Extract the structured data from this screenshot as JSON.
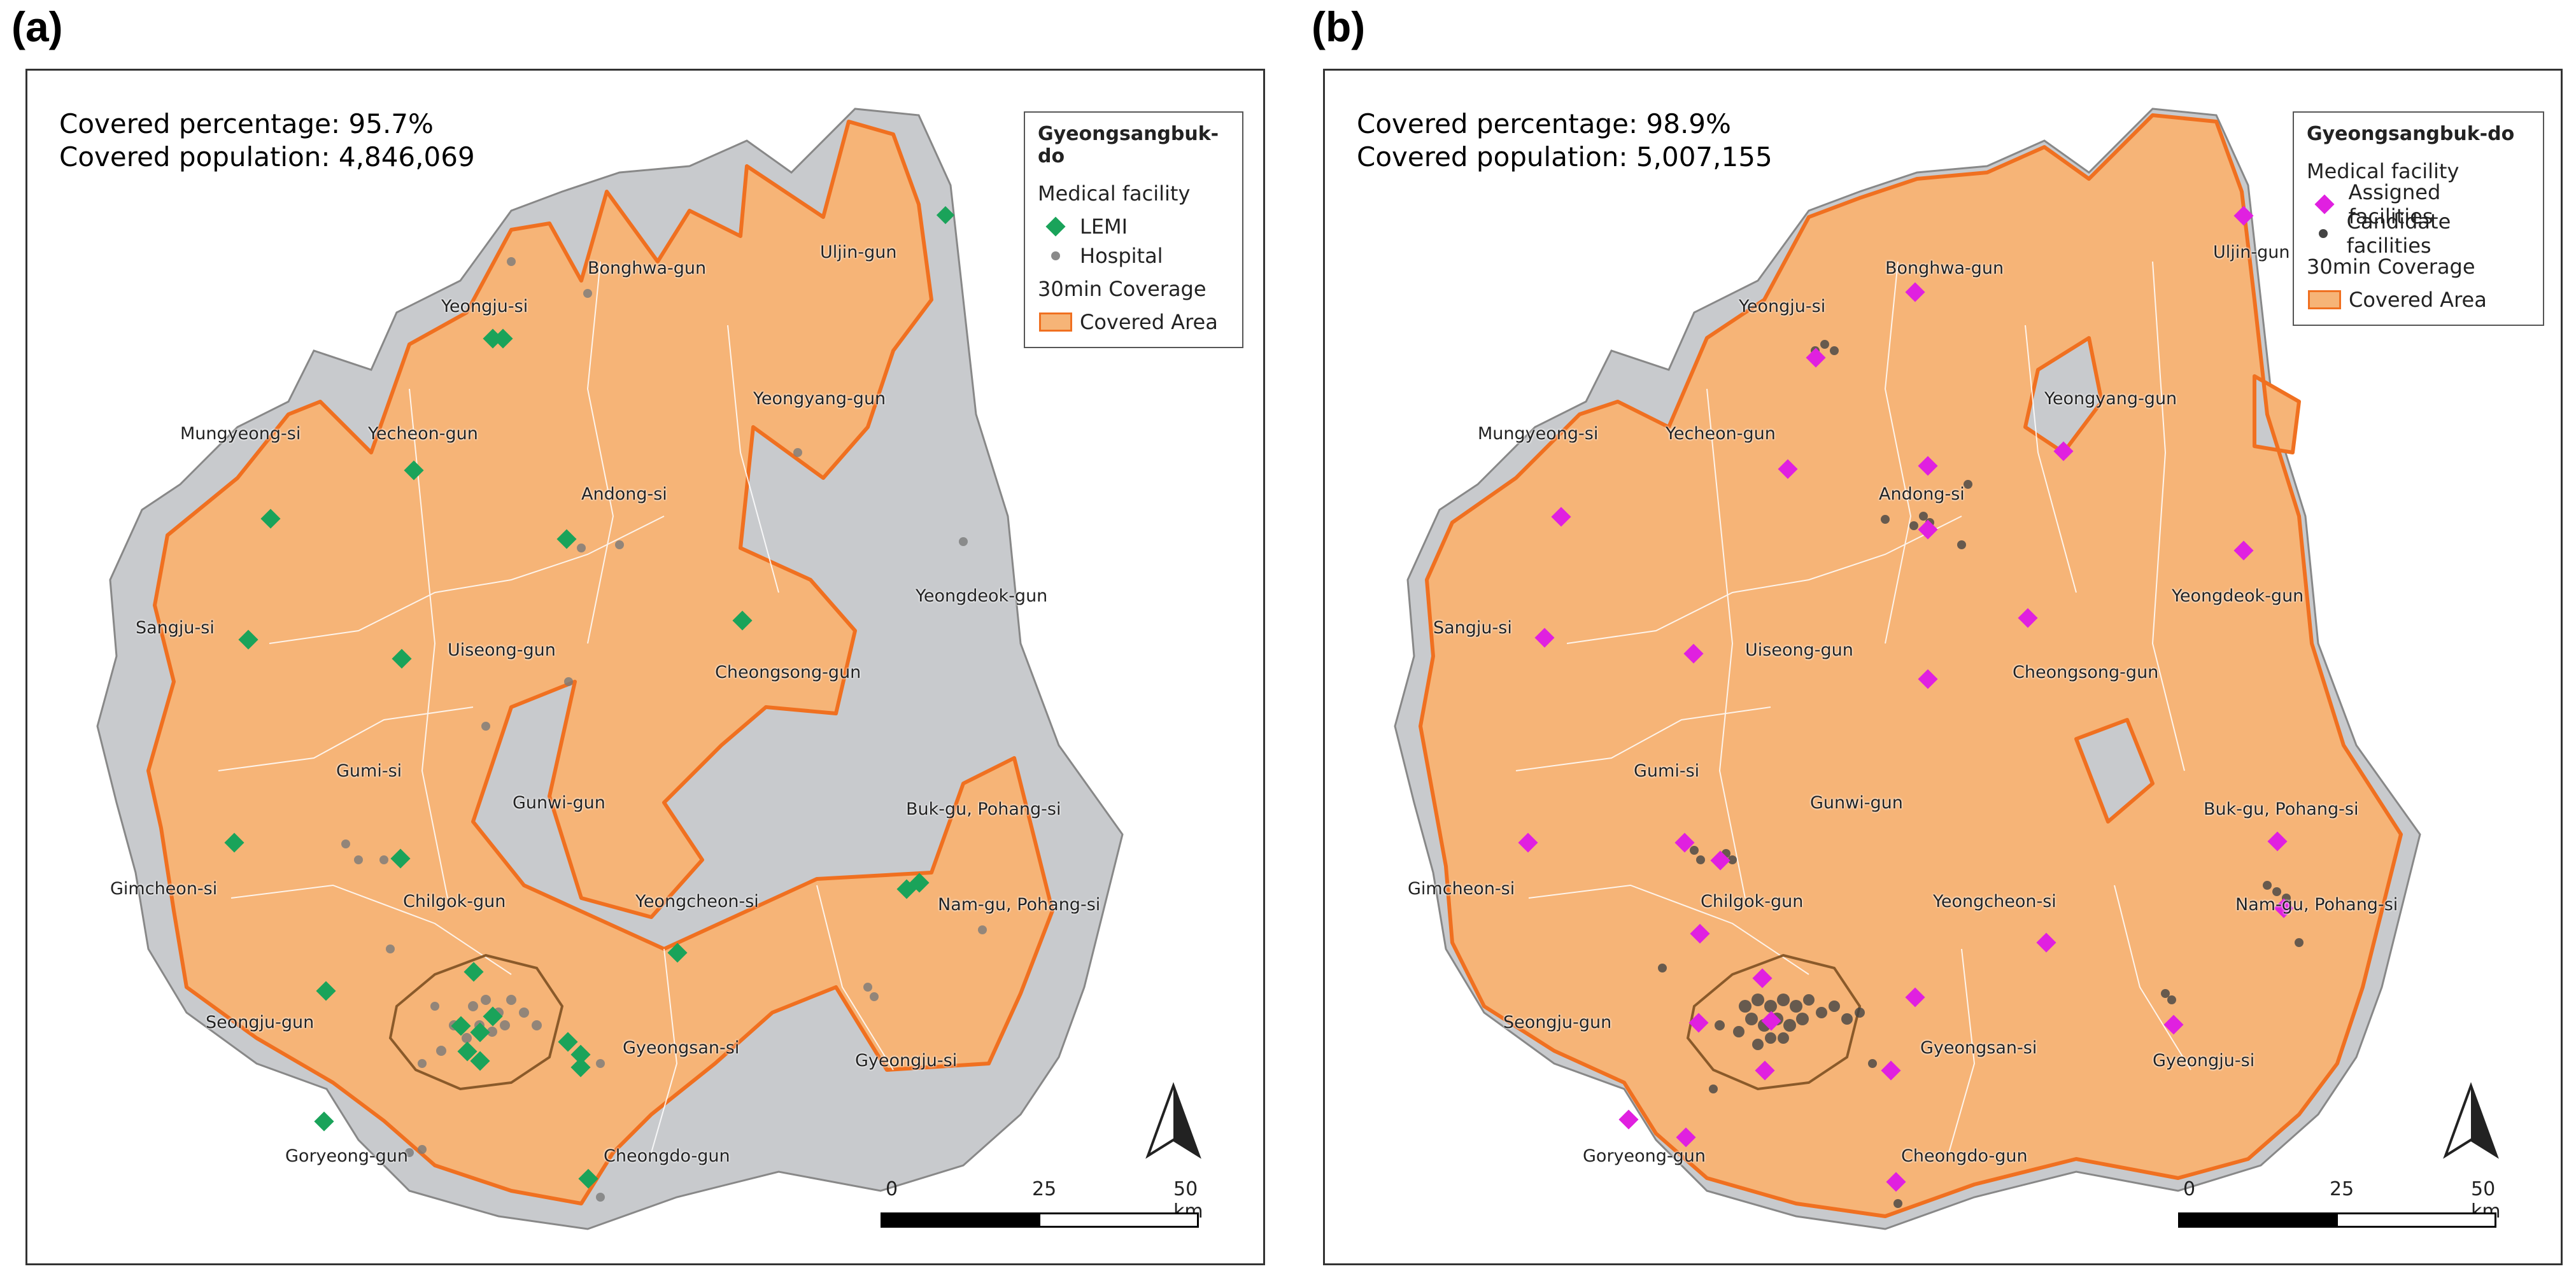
{
  "panels": [
    {
      "id": "a",
      "label": "(a)",
      "covered_percentage": "Covered percentage: 95.7%",
      "covered_population": "Covered population: 4,846,069",
      "legend": {
        "title": "Gyeongsangbuk-do",
        "facility_heading": "Medical facility",
        "item1": "LEMI",
        "item2": "Hospital",
        "coverage_heading": "30min Coverage",
        "item3": "Covered Area",
        "item1_color": "#1aa35a",
        "item2_color": "#8a8a8a"
      },
      "places": [
        "Uljin-gun",
        "Bonghwa-gun",
        "Yeongju-si",
        "Yeongyang-gun",
        "Mungyeong-si",
        "Yecheon-gun",
        "Andong-si",
        "Yeongdeok-gun",
        "Sangju-si",
        "Uiseong-gun",
        "Cheongsong-gun",
        "Gumi-si",
        "Gunwi-gun",
        "Buk-gu, Pohang-si",
        "Gimcheon-si",
        "Chilgok-gun",
        "Yeongcheon-si",
        "Nam-gu, Pohang-si",
        "Seongju-gun",
        "Gyeongsan-si",
        "Gyeongju-si",
        "Goryeong-gun",
        "Cheongdo-gun"
      ],
      "scale": {
        "t0": "0",
        "t1": "25",
        "t2": "50 km"
      }
    },
    {
      "id": "b",
      "label": "(b)",
      "covered_percentage": "Covered percentage: 98.9%",
      "covered_population": "Covered population: 5,007,155",
      "legend": {
        "title": "Gyeongsangbuk-do",
        "facility_heading": "Medical facility",
        "item1": "Assigned facilities",
        "item2": "Candidate facilities",
        "coverage_heading": "30min Coverage",
        "item3": "Covered Area",
        "item1_color": "#e020e0",
        "item2_color": "#444444"
      },
      "places": [
        "Uljin-gun",
        "Bonghwa-gun",
        "Yeongju-si",
        "Yeongyang-gun",
        "Mungyeong-si",
        "Yecheon-gun",
        "Andong-si",
        "Yeongdeok-gun",
        "Sangju-si",
        "Uiseong-gun",
        "Cheongsong-gun",
        "Gumi-si",
        "Gunwi-gun",
        "Buk-gu, Pohang-si",
        "Gimcheon-si",
        "Chilgok-gun",
        "Yeongcheon-si",
        "Nam-gu, Pohang-si",
        "Seongju-gun",
        "Gyeongsan-si",
        "Gyeongju-si",
        "Goryeong-gun",
        "Cheongdo-gun"
      ],
      "scale": {
        "t0": "0",
        "t1": "25",
        "t2": "50 km"
      }
    }
  ],
  "colors": {
    "covered": "#f6b477",
    "covered_border": "#f07020",
    "uncovered": "#c8cacd",
    "district_lines": "#ffffff"
  }
}
